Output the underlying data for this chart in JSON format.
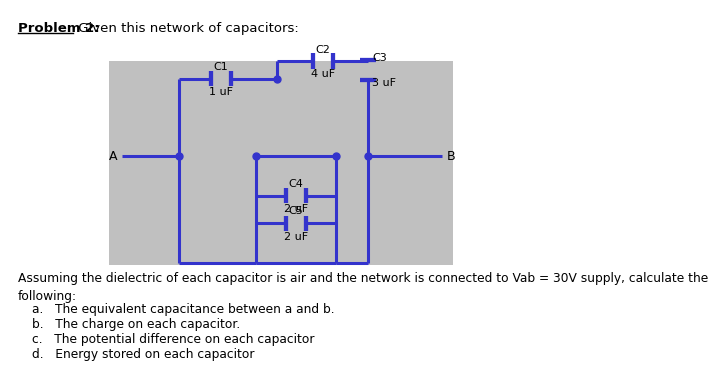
{
  "title_bold": "Problem 2:",
  "title_rest": " Given this network of capacitors:",
  "bg_color": "#c0c0c0",
  "line_color": "#3333cc",
  "line_width": 2.2,
  "text_color": "#000000",
  "capacitors": [
    {
      "name": "C1",
      "value": "1 uF"
    },
    {
      "name": "C2",
      "value": "4 uF"
    },
    {
      "name": "C3",
      "value": "3 uF"
    },
    {
      "name": "C4",
      "value": "2 uF"
    },
    {
      "name": "C5",
      "value": "2 uF"
    }
  ],
  "body_text": "Assuming the dielectric of each capacitor is air and the network is connected to Vab = 30V supply, calculate the\nfollowing:",
  "items": [
    "a.   The equivalent capacitance between a and b.",
    "b.   The charge on each capacitor.",
    "c.   The potential difference on each capacitor",
    "d.   Energy stored on each capacitor"
  ]
}
